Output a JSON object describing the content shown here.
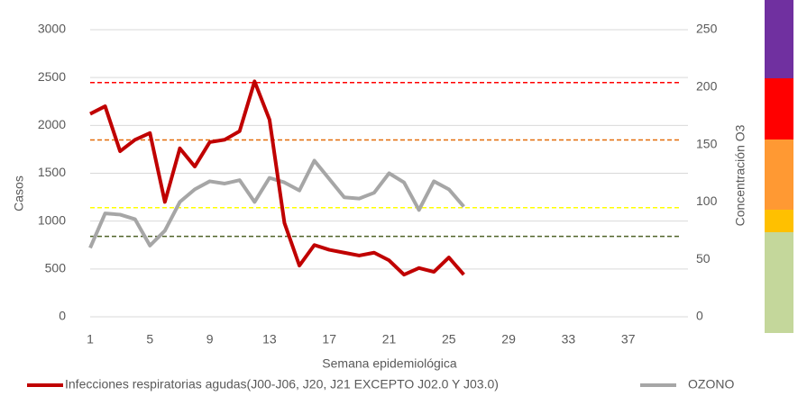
{
  "chart_data": {
    "type": "line",
    "xlabel": "Semana epidemiológica",
    "ylabel": "Casos",
    "y2label": "Concentración O3",
    "x": [
      1,
      2,
      3,
      4,
      5,
      6,
      7,
      8,
      9,
      10,
      11,
      12,
      13,
      14,
      15,
      16,
      17,
      18,
      19,
      20,
      21,
      22,
      23,
      24,
      25,
      26
    ],
    "xlim": [
      1,
      41
    ],
    "xticks": [
      1,
      5,
      9,
      13,
      17,
      21,
      25,
      29,
      33,
      37
    ],
    "ylim": [
      0,
      3000
    ],
    "yticks": [
      0,
      500,
      1000,
      1500,
      2000,
      2500,
      3000
    ],
    "y2lim": [
      0,
      250
    ],
    "y2ticks": [
      0,
      50,
      100,
      150,
      200,
      250
    ],
    "grid": true,
    "legend": "bottom",
    "series": [
      {
        "name": "Infecciones respiratorias agudas(J00-J06, J20, J21 EXCEPTO J02.0 Y J03.0)",
        "color": "#c00000",
        "values": [
          2120,
          2200,
          1730,
          1850,
          1920,
          1200,
          1760,
          1570,
          1825,
          1850,
          1940,
          2460,
          2060,
          980,
          535,
          750,
          700,
          670,
          640,
          670,
          590,
          440,
          510,
          470,
          620,
          440
        ]
      },
      {
        "name": "OZONO",
        "color": "#a6a6a6",
        "axis": "y2",
        "values": [
          60,
          90,
          89,
          85,
          62,
          75,
          100,
          111,
          118,
          116,
          119,
          100,
          121,
          117,
          110,
          136,
          120,
          104,
          103,
          108,
          125,
          117,
          93,
          118,
          111,
          96
        ]
      }
    ],
    "thresholds": [
      {
        "value": 204,
        "color": "#ff0000"
      },
      {
        "value": 154,
        "color": "#e36c09"
      },
      {
        "value": 95,
        "color": "#ffff00"
      },
      {
        "value": 70,
        "color": "#4f6228"
      }
    ]
  }
}
